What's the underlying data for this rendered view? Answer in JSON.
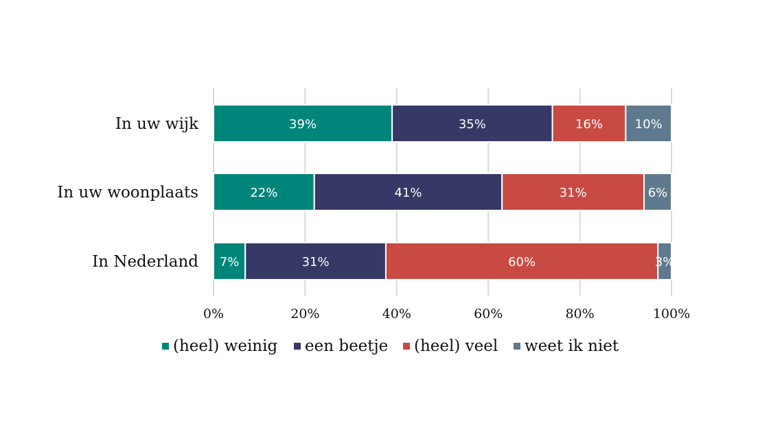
{
  "chart_data": {
    "type": "bar",
    "orientation": "horizontal",
    "stacked": true,
    "percent_stacked": true,
    "categories": [
      "In uw wijk",
      "In uw woonplaats",
      "In Nederland"
    ],
    "series": [
      {
        "name": "(heel) weinig",
        "color": "#00857a",
        "values": [
          39,
          22,
          7
        ],
        "labels": [
          "39%",
          "22%",
          "7%"
        ]
      },
      {
        "name": "een beetje",
        "color": "#363865",
        "values": [
          35,
          41,
          31
        ],
        "labels": [
          "35%",
          "41%",
          "31%"
        ]
      },
      {
        "name": "(heel) veel",
        "color": "#c94a43",
        "values": [
          16,
          31,
          60
        ],
        "labels": [
          "16%",
          "31%",
          "60%"
        ]
      },
      {
        "name": "weet ik niet",
        "color": "#5f7a8e",
        "values": [
          10,
          6,
          3
        ],
        "labels": [
          "10%",
          "6%",
          "3%"
        ]
      }
    ],
    "x_ticks": [
      "0%",
      "20%",
      "40%",
      "60%",
      "80%",
      "100%"
    ],
    "xlim": [
      0,
      100
    ],
    "grid": true,
    "legend_position": "bottom"
  }
}
